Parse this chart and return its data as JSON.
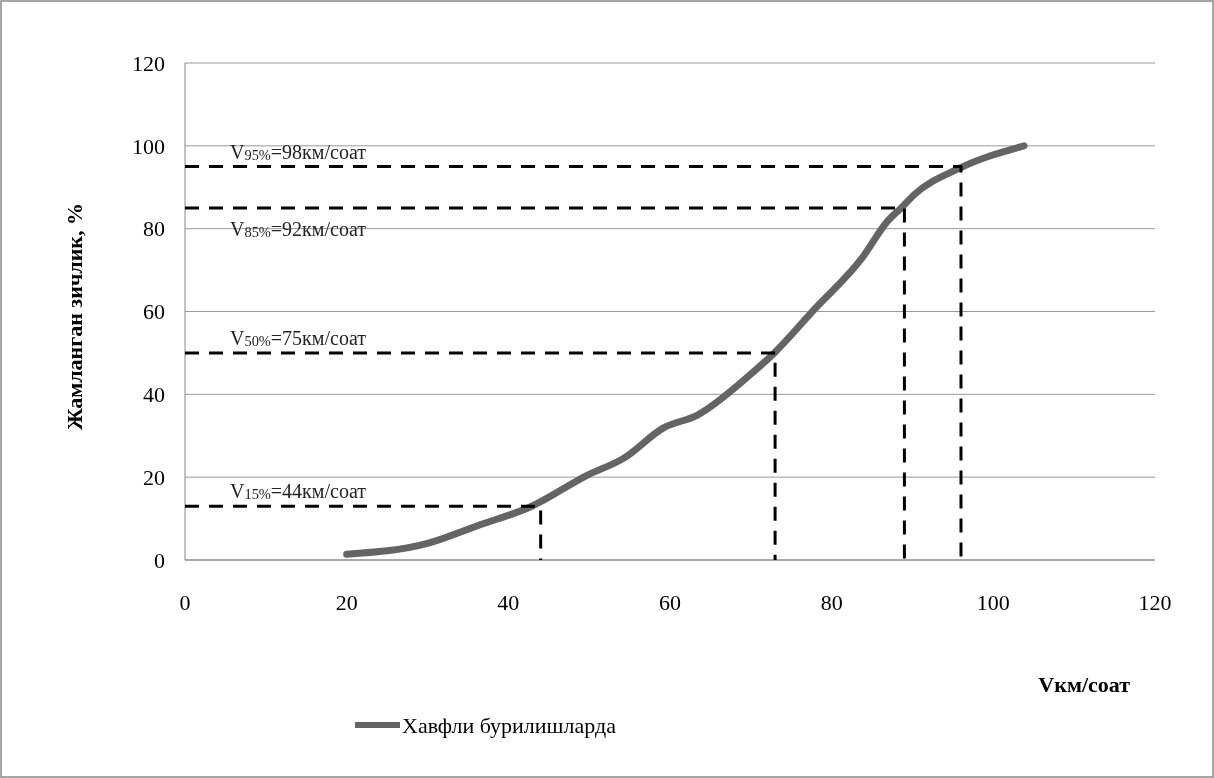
{
  "chart_data": {
    "type": "line",
    "xlabel": "Vкм/соат",
    "ylabel": "Жамланган зичлик, %",
    "xlim": [
      0,
      120
    ],
    "xticks": [
      0,
      20,
      40,
      60,
      80,
      100,
      120
    ],
    "ylim": [
      0,
      120
    ],
    "yticks": [
      0,
      20,
      40,
      60,
      80,
      100,
      120
    ],
    "grid": "y",
    "legend": "bottom",
    "marker": "none",
    "line_style": "solid",
    "series": [
      {
        "name": "Хавфли бурилишларда",
        "color": "#646464",
        "x": [
          20,
          30,
          36.5,
          42.7,
          49.8,
          54.3,
          59.2,
          63.4,
          69.6,
          72.9,
          77.8,
          83.6,
          87,
          88.6,
          90.2,
          95.7,
          103.8
        ],
        "values": [
          1.4,
          4,
          8.5,
          12.8,
          20.5,
          24.6,
          31.9,
          35,
          44.2,
          50,
          60.4,
          72.5,
          82,
          85,
          88.2,
          94.5,
          100
        ]
      },
      {
        "color": "#000000",
        "line_style": "dashed",
        "x": [
          0,
          44,
          44
        ],
        "values": [
          13,
          13,
          0
        ]
      },
      {
        "color": "#000000",
        "line_style": "dashed",
        "x": [
          0,
          73,
          73
        ],
        "values": [
          50,
          50,
          0
        ]
      },
      {
        "color": "#000000",
        "line_style": "dashed",
        "x": [
          0,
          89,
          89
        ],
        "values": [
          85,
          85,
          0
        ]
      },
      {
        "color": "#000000",
        "line_style": "dashed",
        "x": [
          0,
          96,
          96
        ],
        "values": [
          95,
          95,
          0
        ]
      }
    ],
    "annotations": [
      "V$_{15%}$=44км/соат",
      "V$_{50%}$=75км/соат",
      "V$_{85%}$=92км/соат",
      "V$_{95%}$=98км/соат"
    ]
  }
}
